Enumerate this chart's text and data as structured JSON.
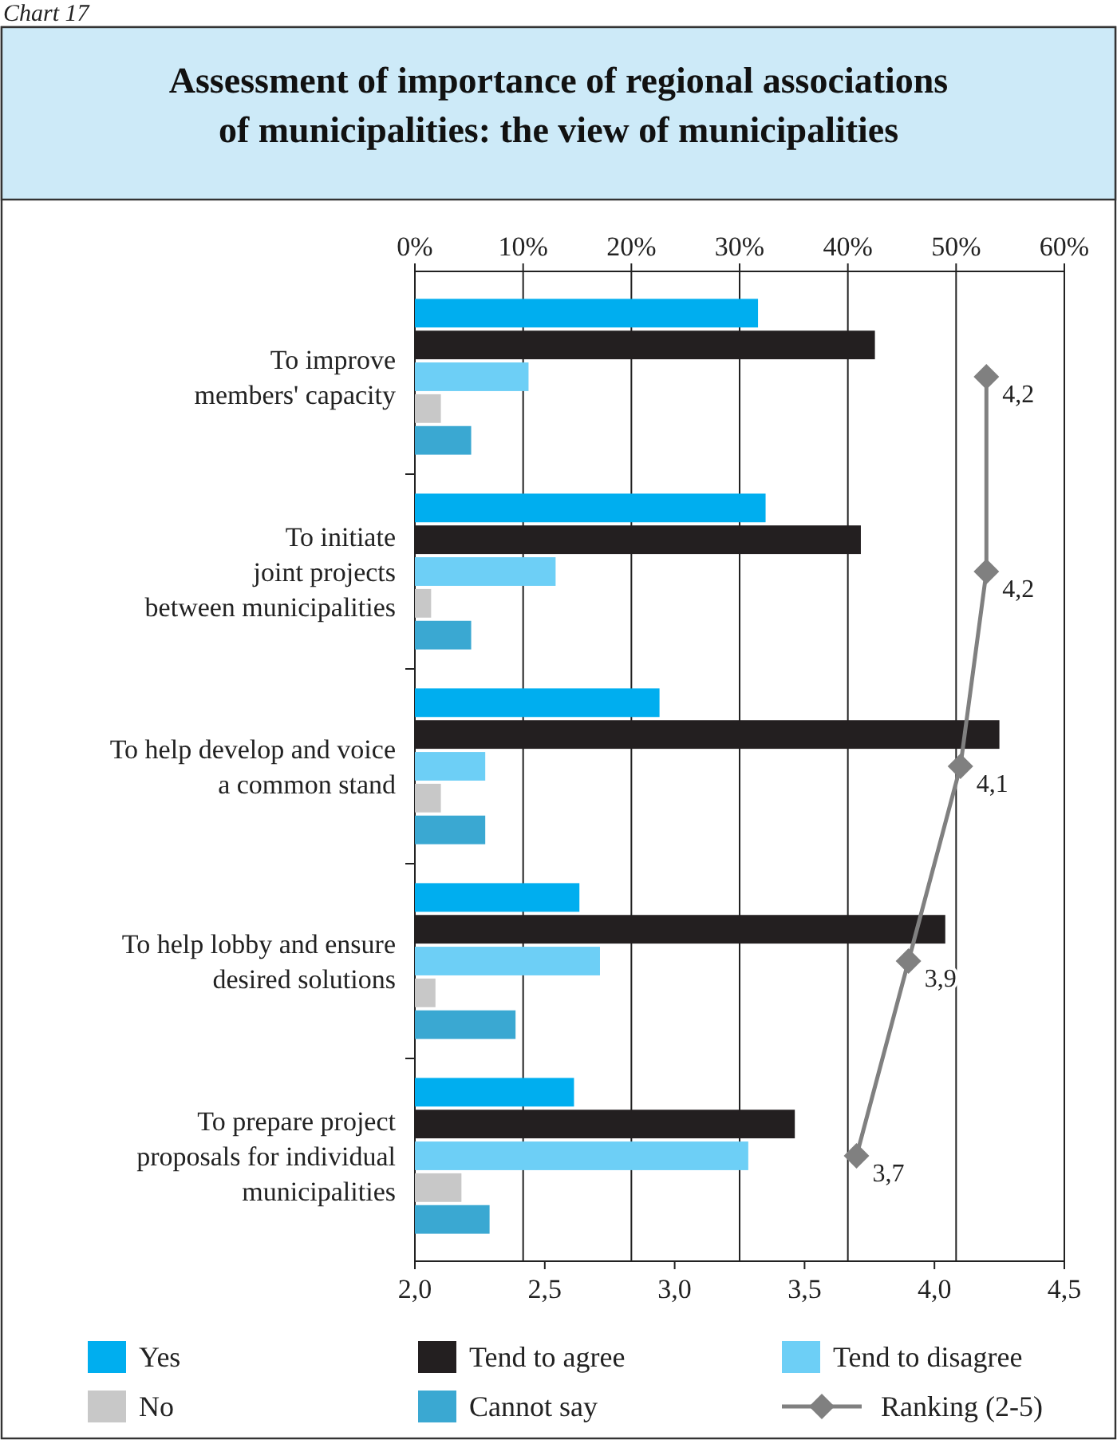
{
  "chart_data": {
    "type": "bar",
    "orientation": "horizontal",
    "title": "Assessment of importance of regional associations\nof municipalities: the view of municipalities",
    "annotations": [
      "Chart 17"
    ],
    "categories": [
      "To improve\nmembers' capacity",
      "To initiate\njoint projects\nbetween municipalities",
      "To help develop and voice\na common stand",
      "To help lobby and ensure\ndesired solutions",
      "To prepare project\nproposals for individual\nmunicipalities"
    ],
    "series": [
      {
        "name": "Yes",
        "color": "#00aeef",
        "values": [
          31.7,
          32.4,
          22.6,
          15.2,
          14.7
        ]
      },
      {
        "name": "Tend to agree",
        "color": "#231f20",
        "values": [
          42.5,
          41.2,
          54.0,
          49.0,
          35.1
        ]
      },
      {
        "name": "Tend to disagree",
        "color": "#6dcff6",
        "values": [
          10.5,
          13.0,
          6.5,
          17.1,
          30.8
        ]
      },
      {
        "name": "No",
        "color": "#c8c8c8",
        "values": [
          2.4,
          1.5,
          2.4,
          1.9,
          4.3
        ]
      },
      {
        "name": "Cannot say",
        "color": "#3aa8d2",
        "values": [
          5.2,
          5.2,
          6.5,
          9.3,
          6.9
        ]
      },
      {
        "name": "Ranking (2-5)",
        "type": "line",
        "axis": "x2",
        "color": "#808080",
        "marker": "diamond",
        "values": [
          4.2,
          4.2,
          4.1,
          3.9,
          3.7
        ],
        "value_labels": [
          "4,2",
          "4,2",
          "4,1",
          "3,9",
          "3,7"
        ]
      }
    ],
    "xlim": [
      0,
      60
    ],
    "xticks": [
      {
        "value": 0,
        "label": "0%"
      },
      {
        "value": 10,
        "label": "10%"
      },
      {
        "value": 20,
        "label": "20%"
      },
      {
        "value": 30,
        "label": "30%"
      },
      {
        "value": 40,
        "label": "40%"
      },
      {
        "value": 50,
        "label": "50%"
      },
      {
        "value": 60,
        "label": "60%"
      }
    ],
    "x2lim": [
      2,
      4.5
    ],
    "x2ticks": [
      {
        "value": 2,
        "label": "2,0"
      },
      {
        "value": 2.5,
        "label": "2,5"
      },
      {
        "value": 3,
        "label": "3,0"
      },
      {
        "value": 3.5,
        "label": "3,5"
      },
      {
        "value": 4,
        "label": "4,0"
      },
      {
        "value": 4.5,
        "label": "4,5"
      }
    ],
    "grid": "x",
    "legend": "bottom"
  }
}
